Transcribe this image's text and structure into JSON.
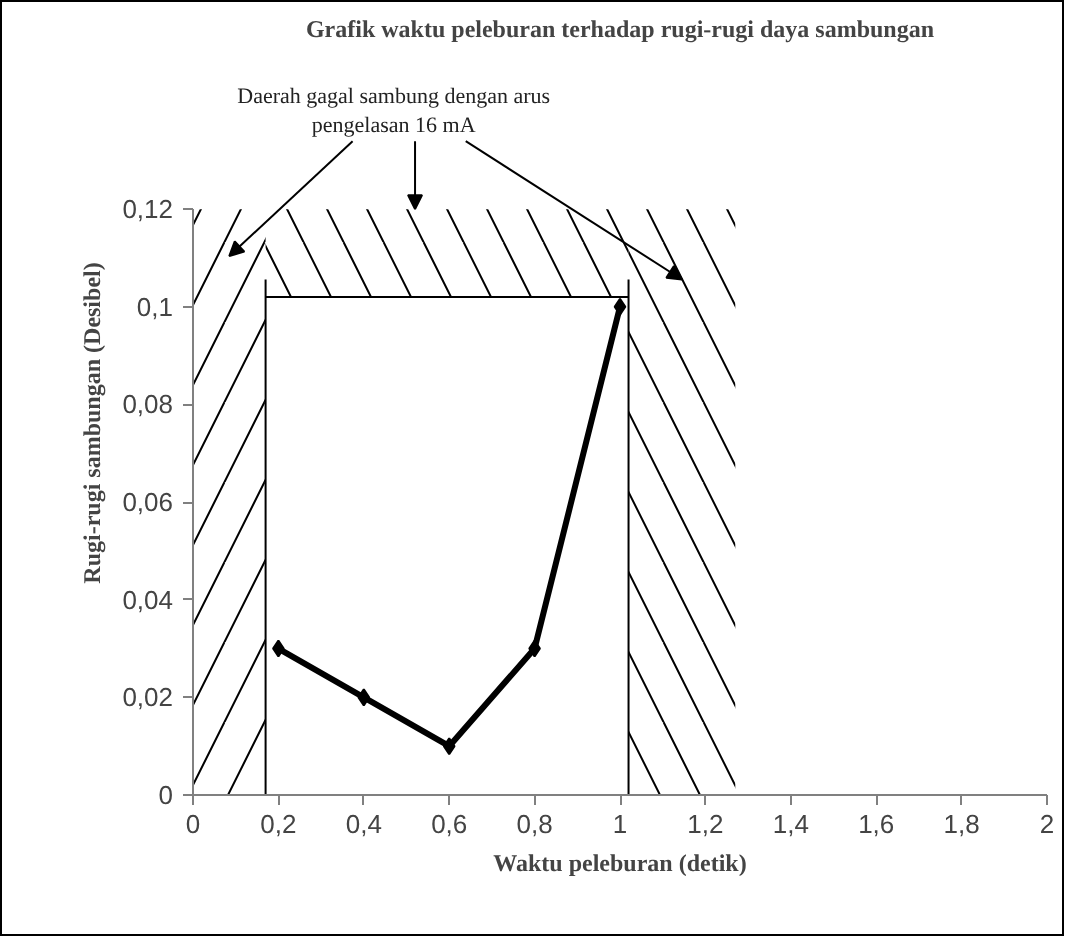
{
  "chart_data": {
    "type": "line",
    "title": "Grafik waktu peleburan terhadap rugi-rugi daya sambungan",
    "xlabel": "Waktu peleburan (detik)",
    "ylabel": "Rugi-rugi sambungan (Desibel)",
    "x": [
      0.2,
      0.4,
      0.6,
      0.8,
      1.0
    ],
    "series": [
      {
        "color": "#000000",
        "values": [
          0.03,
          0.02,
          0.01,
          0.03,
          0.1
        ]
      }
    ],
    "xlim": [
      0,
      2
    ],
    "ylim": [
      0,
      0.12
    ],
    "xticks": [
      0,
      {
        "value": 0.2,
        "label": "0,2"
      },
      {
        "value": 0.4,
        "label": "0,4"
      },
      {
        "value": 0.6,
        "label": "0,6"
      },
      {
        "value": 0.8,
        "label": "0,8"
      },
      1,
      {
        "value": 1.2,
        "label": "1,2"
      },
      {
        "value": 1.4,
        "label": "1,4"
      },
      {
        "value": 1.6,
        "label": "1,6"
      },
      {
        "value": 1.8,
        "label": "1,8"
      },
      2
    ],
    "yticks": [
      0,
      {
        "value": 0.02,
        "label": "0,02"
      },
      {
        "value": 0.04,
        "label": "0,04"
      },
      {
        "value": 0.06,
        "label": "0,06"
      },
      {
        "value": 0.08,
        "label": "0,08"
      },
      {
        "value": 0.1,
        "label": "0,1"
      },
      {
        "value": 0.12,
        "label": "0,12"
      }
    ],
    "bands": [
      {
        "axis": "x",
        "from": 0,
        "to": 0.17,
        "color": "#000000"
      },
      {
        "axis": "x",
        "from": 1.02,
        "to": 1.27,
        "color": "#000000"
      },
      {
        "axis": "y",
        "from": 0.102,
        "to": 0.12,
        "color": "#000000"
      }
    ],
    "ref_lines": [
      {
        "axis": "x",
        "value": 0.17,
        "color": "#000000"
      },
      {
        "axis": "x",
        "value": 1.02,
        "color": "#000000"
      },
      {
        "axis": "y",
        "value": 0.102,
        "color": "#000000"
      }
    ],
    "annotations": [
      {
        "text": "Daerah gagal sambung dengan arus\npengelasan 16 mA",
        "x": 0.52,
        "y": 0.12
      }
    ],
    "marker": "diamond",
    "line_style": "solid",
    "grid": false
  }
}
